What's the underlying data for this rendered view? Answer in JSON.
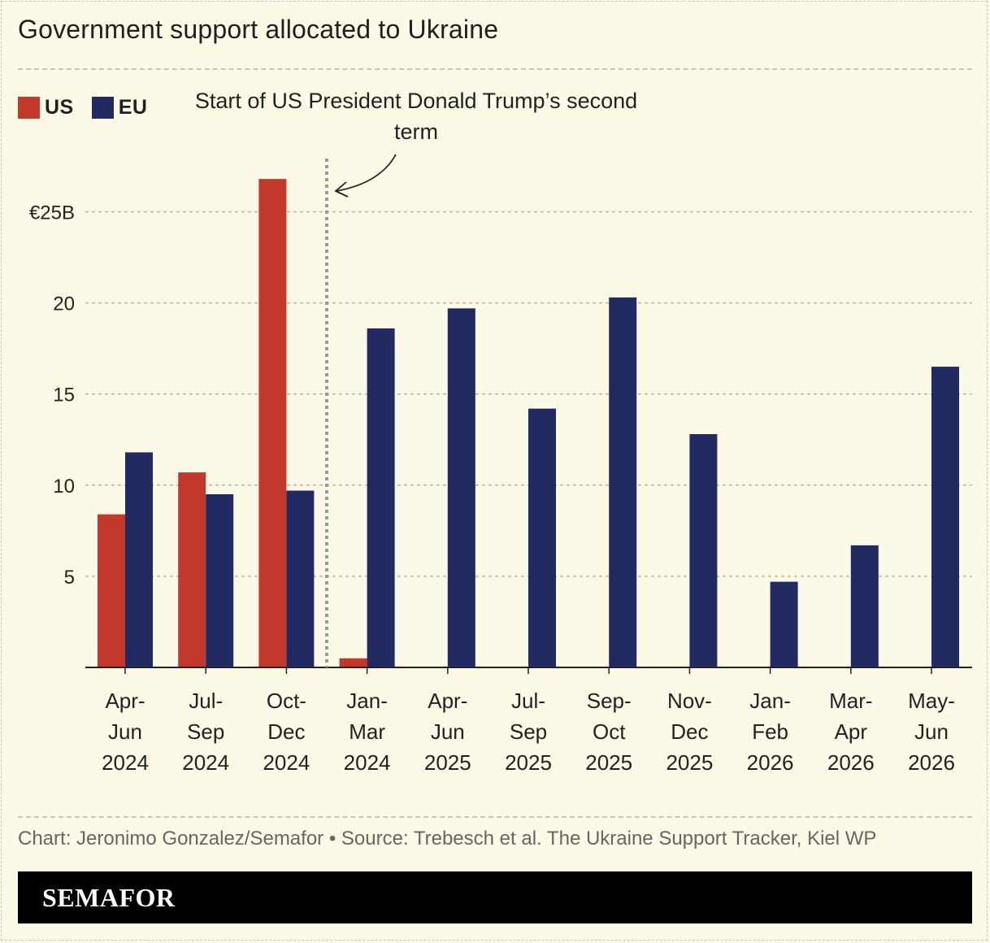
{
  "header": {
    "title": "Government support allocated to Ukraine"
  },
  "legend": [
    {
      "label": "US",
      "color": "#c0392b"
    },
    {
      "label": "EU",
      "color": "#212a63"
    }
  ],
  "annotation": {
    "text_line1": "Start of US President Donald Trump’s second",
    "text_line2": "term",
    "after_category_index": 2
  },
  "chart_data": {
    "type": "bar",
    "categories": [
      [
        "Apr-",
        "Jun",
        "2024"
      ],
      [
        "Jul-",
        "Sep",
        "2024"
      ],
      [
        "Oct-",
        "Dec",
        "2024"
      ],
      [
        "Jan-",
        "Mar",
        "2024"
      ],
      [
        "Apr-",
        "Jun",
        "2025"
      ],
      [
        "Jul-",
        "Sep",
        "2025"
      ],
      [
        "Sep-",
        "Oct",
        "2025"
      ],
      [
        "Nov-",
        "Dec",
        "2025"
      ],
      [
        "Jan-",
        "Feb",
        "2026"
      ],
      [
        "Mar-",
        "Apr",
        "2026"
      ],
      [
        "May-",
        "Jun",
        "2026"
      ]
    ],
    "series": [
      {
        "name": "US",
        "color": "#c0392b",
        "values": [
          8.4,
          10.7,
          26.8,
          0.5,
          0,
          0,
          0,
          0,
          0,
          0,
          0
        ]
      },
      {
        "name": "EU",
        "color": "#212a63",
        "values": [
          11.8,
          9.5,
          9.7,
          18.6,
          19.7,
          14.2,
          20.3,
          12.8,
          4.7,
          6.7,
          16.5
        ]
      }
    ],
    "y_ticks": [
      {
        "value": 25,
        "label": "€25B"
      },
      {
        "value": 20,
        "label": "20"
      },
      {
        "value": 15,
        "label": "15"
      },
      {
        "value": 10,
        "label": "10"
      },
      {
        "value": 5,
        "label": "5"
      }
    ],
    "ylim": [
      0,
      25
    ],
    "grid": true,
    "legend_position": "top-left"
  },
  "footer": {
    "source": "Chart: Jeronimo Gonzalez/Semafor • Source: Trebesch et al. The Ukraine Support Tracker, Kiel WP",
    "brand": "SEMAFOR"
  }
}
